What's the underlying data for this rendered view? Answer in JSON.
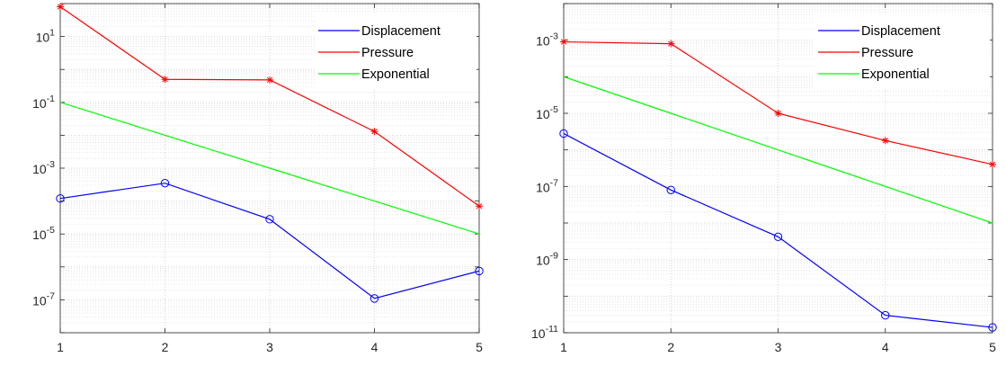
{
  "chart_data": [
    {
      "type": "line",
      "x": [
        1,
        2,
        3,
        4,
        5
      ],
      "ylim_exp": [
        -8,
        2
      ],
      "yscale": "log",
      "ytick_labels": [
        {
          "base": "10",
          "exp": "1",
          "value_exp": 1
        },
        {
          "base": "10",
          "exp": "-1",
          "value_exp": -1
        },
        {
          "base": "10",
          "exp": "-3",
          "value_exp": -3
        },
        {
          "base": "10",
          "exp": "-5",
          "value_exp": -5
        },
        {
          "base": "10",
          "exp": "-7",
          "value_exp": -7
        }
      ],
      "xtick_labels": [
        "1",
        "2",
        "3",
        "4",
        "5"
      ],
      "grid": true,
      "legend_position": "top-right",
      "series": [
        {
          "name": "Displacement",
          "color": "#0000ff",
          "marker": "circle",
          "values": [
            0.00012,
            0.00035,
            2.8e-05,
            1.1e-07,
            7.5e-07
          ]
        },
        {
          "name": "Pressure",
          "color": "#ff0000",
          "marker": "star",
          "values": [
            80,
            0.5,
            0.48,
            0.013,
            7e-05
          ]
        },
        {
          "name": "Exponential",
          "color": "#00ff00",
          "marker": "none",
          "values": [
            0.1,
            0.01,
            0.001,
            0.0001,
            1e-05
          ]
        }
      ]
    },
    {
      "type": "line",
      "x": [
        1,
        2,
        3,
        4,
        5
      ],
      "ylim_exp": [
        -11,
        -2
      ],
      "yscale": "log",
      "ytick_labels": [
        {
          "base": "10",
          "exp": "-3",
          "value_exp": -3
        },
        {
          "base": "10",
          "exp": "-5",
          "value_exp": -5
        },
        {
          "base": "10",
          "exp": "-7",
          "value_exp": -7
        },
        {
          "base": "10",
          "exp": "-9",
          "value_exp": -9
        },
        {
          "base": "10",
          "exp": "-11",
          "value_exp": -11
        }
      ],
      "xtick_labels": [
        "1",
        "2",
        "3",
        "4",
        "5"
      ],
      "grid": true,
      "legend_position": "top-right",
      "series": [
        {
          "name": "Displacement",
          "color": "#0000ff",
          "marker": "circle",
          "values": [
            2.8e-06,
            8e-08,
            4.2e-09,
            3e-11,
            1.4e-11
          ]
        },
        {
          "name": "Pressure",
          "color": "#ff0000",
          "marker": "star",
          "values": [
            0.0009,
            0.0008,
            1e-05,
            1.8e-06,
            4e-07
          ]
        },
        {
          "name": "Exponential",
          "color": "#00ff00",
          "marker": "none",
          "values": [
            0.0001,
            1e-05,
            1e-06,
            1e-07,
            1e-08
          ]
        }
      ]
    }
  ]
}
